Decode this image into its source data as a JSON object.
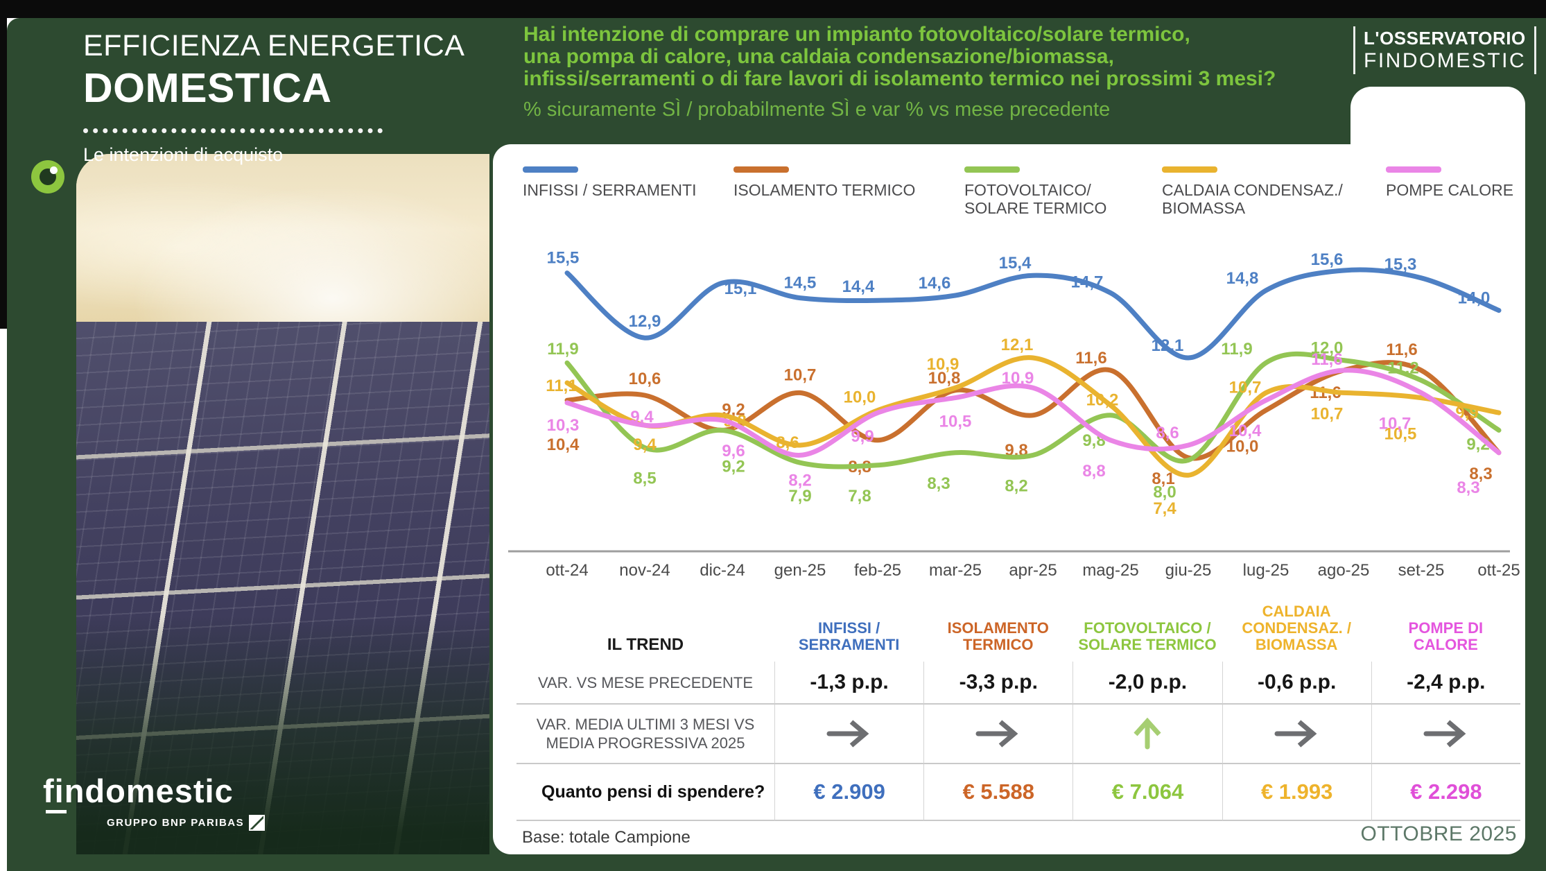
{
  "header": {
    "title_line1": "EFFICIENZA ENERGETICA",
    "title_line2": "DOMESTICA",
    "subtitle": "Le intenzioni di acquisto",
    "question_lines": [
      "Hai intenzione di comprare un impianto fotovoltaico/solare termico,",
      "una pompa di calore, una caldaia condensazione/biomassa,",
      "infissi/serramenti o di fare lavori di isolamento termico nei prossimi 3 mesi?"
    ],
    "measure_note": "% sicuramente SÌ / probabilmente SÌ e var % vs mese precedente",
    "observatory": {
      "line1": "L'OSSERVATORIO",
      "line2": "FINDOMESTIC"
    }
  },
  "brand": {
    "logo": "findomestic",
    "group": "GRUPPO BNP PARIBAS"
  },
  "chart_data": {
    "type": "line",
    "categories": [
      "ott-24",
      "nov-24",
      "dic-24",
      "gen-25",
      "feb-25",
      "mar-25",
      "apr-25",
      "mag-25",
      "giu-25",
      "lug-25",
      "ago-25",
      "set-25",
      "ott-25"
    ],
    "series": [
      {
        "name": "INFISSI / SERRAMENTI",
        "legend_lines": [
          "INFISSI / SERRAMENTI"
        ],
        "color": "#4e80c4",
        "values": [
          15.5,
          12.9,
          15.1,
          14.5,
          14.4,
          14.6,
          15.4,
          14.7,
          12.1,
          14.8,
          15.6,
          15.3,
          14.0
        ]
      },
      {
        "name": "ISOLAMENTO TERMICO",
        "legend_lines": [
          "ISOLAMENTO TERMICO"
        ],
        "color": "#c9702e",
        "values": [
          10.4,
          10.6,
          9.2,
          10.7,
          8.8,
          10.8,
          9.8,
          11.6,
          8.1,
          10.0,
          11.6,
          11.6,
          8.3
        ]
      },
      {
        "name": "FOTOVOLTAICO/ SOLARE TERMICO",
        "legend_lines": [
          "FOTOVOLTAICO/",
          "SOLARE TERMICO"
        ],
        "color": "#93c554",
        "values": [
          11.9,
          8.5,
          9.2,
          7.9,
          7.8,
          8.3,
          8.2,
          9.8,
          8.0,
          11.9,
          12.0,
          11.2,
          9.2
        ]
      },
      {
        "name": "CALDAIA CONDENSAZ./ BIOMASSA",
        "legend_lines": [
          "CALDAIA CONDENSAZ./",
          "BIOMASSA"
        ],
        "color": "#e9b32f",
        "values": [
          11.1,
          9.4,
          9.8,
          8.6,
          10.0,
          10.9,
          12.1,
          10.2,
          7.4,
          10.7,
          10.7,
          10.5,
          9.9
        ]
      },
      {
        "name": "POMPE CALORE",
        "legend_lines": [
          "POMPE CALORE"
        ],
        "color": "#ea85e6",
        "values": [
          10.3,
          9.4,
          9.6,
          8.2,
          9.9,
          10.5,
          10.9,
          8.8,
          8.6,
          10.4,
          11.6,
          10.7,
          8.3
        ]
      }
    ],
    "ylim": [
      7,
      16
    ],
    "grid": false,
    "legend_position": "top",
    "value_label_format": "comma-decimal",
    "xlabel": "",
    "ylabel": "% sicuramente SÌ / probabilmente SÌ"
  },
  "trend_table": {
    "title": "IL TREND",
    "columns": [
      {
        "lines": [
          "INFISSI /",
          "SERRAMENTI"
        ],
        "color": "#3f6fbd"
      },
      {
        "lines": [
          "ISOLAMENTO",
          "TERMICO"
        ],
        "color": "#cc6527"
      },
      {
        "lines": [
          "FOTOVOLTAICO /",
          "SOLARE TERMICO"
        ],
        "color": "#8dc63f"
      },
      {
        "lines": [
          "CALDAIA",
          "CONDENSAZ. /",
          "BIOMASSA"
        ],
        "color": "#eeb32c"
      },
      {
        "lines": [
          "POMPE DI",
          "CALORE"
        ],
        "color": "#e455de"
      }
    ],
    "var_label": "VAR. VS MESE PRECEDENTE",
    "var_values": [
      "-1,3 p.p.",
      "-3,3 p.p.",
      "-2,0 p.p.",
      "-0,6 p.p.",
      "-2,4 p.p."
    ],
    "media_label_lines": [
      "VAR.  MEDIA ULTIMI 3 MESI VS",
      "MEDIA PROGRESSIVA  2025"
    ],
    "media_arrows": [
      "right",
      "right",
      "up",
      "right",
      "right"
    ],
    "arrow_colors": {
      "right": "#6d6e71",
      "up": "#a6ce72"
    },
    "spend_label": "Quanto pensi di spendere?",
    "spend_values": [
      "€ 2.909",
      "€ 5.588",
      "€ 7.064",
      "€ 1.993",
      "€ 2.298"
    ],
    "spend_colors": [
      "#3f6fbd",
      "#cc6527",
      "#8dc63f",
      "#eeb32c",
      "#e04fd8"
    ]
  },
  "footer": {
    "base_note": "Base: totale Campione",
    "date": "OTTOBRE 2025"
  },
  "colors": {
    "background_green": "#2d4a30",
    "question_green": "#7dc53e",
    "note_green": "#72b445"
  }
}
